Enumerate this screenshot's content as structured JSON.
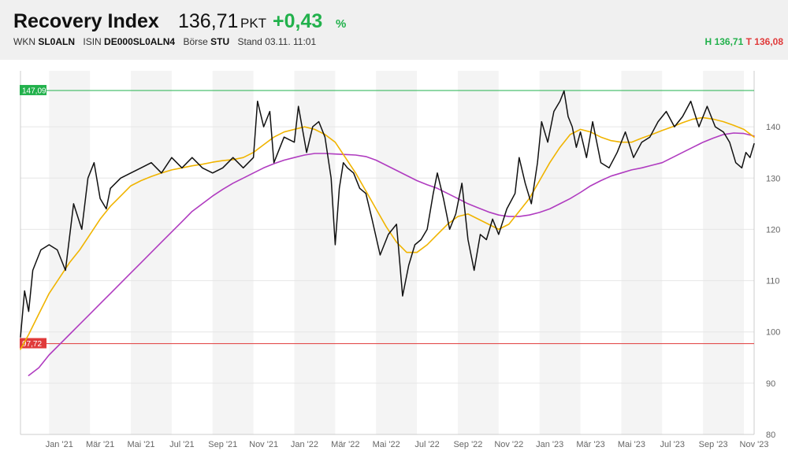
{
  "header": {
    "title": "Recovery Index",
    "price": "136,71",
    "unit": "PKT",
    "change": "+0,43",
    "change_pct_symbol": "%",
    "wkn_label": "WKN",
    "wkn": "SL0ALN",
    "isin_label": "ISIN",
    "isin": "DE000SL0ALN4",
    "exchange_label": "Börse",
    "exchange": "STU",
    "stand_label": "Stand",
    "stand": "03.11. 11:01",
    "high_label": "H",
    "high": "136,71",
    "low_label": "T",
    "low": "136,08"
  },
  "colors": {
    "positive": "#22b14c",
    "negative": "#e03a3a",
    "price_line": "#111111",
    "sma_short": "#f0b400",
    "sma_long": "#b03cc0",
    "band": "#f4f4f4"
  },
  "chart_data": {
    "type": "line",
    "ylim": [
      80,
      150
    ],
    "y_ticks": [
      80,
      90,
      100,
      110,
      120,
      130,
      140
    ],
    "x_ticks": [
      "Jan '21",
      "Mär '21",
      "Mai '21",
      "Jul '21",
      "Sep '21",
      "Nov '21",
      "Jan '22",
      "Mär '22",
      "Mai '22",
      "Jul '22",
      "Sep '22",
      "Nov '22",
      "Jan '23",
      "Mär '23",
      "Mai '23",
      "Jul '23",
      "Sep '23",
      "Nov '23"
    ],
    "x_ticks_t": [
      0.5,
      2.5,
      4.5,
      6.5,
      8.5,
      10.5,
      12.5,
      14.5,
      16.5,
      18.5,
      20.5,
      22.5,
      24.5,
      26.5,
      28.5,
      30.5,
      32.5,
      34.5
    ],
    "x_range_t": [
      -1.4,
      34.5
    ],
    "bands_t": [
      [
        0,
        2
      ],
      [
        4,
        6
      ],
      [
        8,
        10
      ],
      [
        12,
        14
      ],
      [
        16,
        18
      ],
      [
        20,
        22
      ],
      [
        24,
        26
      ],
      [
        28,
        30
      ],
      [
        32,
        34
      ]
    ],
    "reference_lines": [
      {
        "label": "147,09",
        "value": 147.09,
        "color": "#22b14c"
      },
      {
        "label": "97,72",
        "value": 97.72,
        "color": "#e03a3a"
      }
    ],
    "series": [
      {
        "key": "price",
        "t": [
          -1.4,
          -1.2,
          -1.0,
          -0.8,
          -0.6,
          -0.4,
          0.0,
          0.4,
          0.8,
          1.2,
          1.6,
          1.9,
          2.2,
          2.5,
          2.8,
          3.0,
          3.5,
          4.0,
          4.5,
          5.0,
          5.5,
          6.0,
          6.5,
          7.0,
          7.5,
          8.0,
          8.5,
          9.0,
          9.5,
          10.0,
          10.2,
          10.5,
          10.8,
          11.0,
          11.5,
          12.0,
          12.2,
          12.6,
          12.9,
          13.2,
          13.5,
          13.8,
          14.0,
          14.2,
          14.4,
          14.6,
          14.9,
          15.2,
          15.5,
          15.8,
          16.2,
          16.6,
          17.0,
          17.3,
          17.6,
          17.9,
          18.2,
          18.5,
          18.8,
          19.0,
          19.3,
          19.6,
          19.9,
          20.2,
          20.5,
          20.8,
          21.1,
          21.4,
          21.7,
          22.0,
          22.4,
          22.8,
          23.0,
          23.3,
          23.6,
          23.9,
          24.1,
          24.4,
          24.7,
          25.0,
          25.2,
          25.4,
          25.6,
          25.8,
          26.0,
          26.3,
          26.6,
          27.0,
          27.4,
          27.8,
          28.2,
          28.6,
          29.0,
          29.4,
          29.8,
          30.2,
          30.6,
          31.0,
          31.4,
          31.8,
          32.2,
          32.6,
          33.0,
          33.3,
          33.6,
          33.9,
          34.1,
          34.3,
          34.5
        ],
        "values": [
          99,
          108,
          104,
          112,
          114,
          116,
          117,
          116,
          112,
          125,
          120,
          130,
          133,
          126,
          124,
          128,
          130,
          131,
          132,
          133,
          131,
          134,
          132,
          134,
          132,
          131,
          132,
          134,
          132,
          134,
          145,
          140,
          143,
          133,
          138,
          137,
          144,
          135,
          140,
          141,
          138,
          130,
          117,
          128,
          133,
          132,
          131,
          128,
          127,
          122,
          115,
          119,
          121,
          107,
          113,
          117,
          118,
          120,
          127,
          131,
          126,
          120,
          123,
          129,
          118,
          112,
          119,
          118,
          122,
          119,
          124,
          127,
          134,
          129,
          125,
          133,
          141,
          137,
          143,
          145,
          147,
          142,
          140,
          136,
          139,
          134,
          141,
          133,
          132,
          135,
          139,
          134,
          137,
          138,
          141,
          143,
          140,
          142,
          145,
          140,
          144,
          140,
          139,
          137,
          133,
          132,
          135,
          134,
          136.7
        ]
      },
      {
        "key": "sma_short",
        "t": [
          -1.4,
          -1.0,
          -0.5,
          0.0,
          0.5,
          1.0,
          1.5,
          2.0,
          2.5,
          3.0,
          3.5,
          4.0,
          4.5,
          5.0,
          5.5,
          6.0,
          6.5,
          7.0,
          7.5,
          8.0,
          8.5,
          9.0,
          9.5,
          10.0,
          10.5,
          11.0,
          11.5,
          12.0,
          12.5,
          13.0,
          13.5,
          14.0,
          14.5,
          15.0,
          15.5,
          16.0,
          16.5,
          17.0,
          17.5,
          18.0,
          18.5,
          19.0,
          19.5,
          20.0,
          20.5,
          21.0,
          21.5,
          22.0,
          22.5,
          23.0,
          23.5,
          24.0,
          24.5,
          25.0,
          25.5,
          26.0,
          26.5,
          27.0,
          27.5,
          28.0,
          28.5,
          29.0,
          29.5,
          30.0,
          30.5,
          31.0,
          31.5,
          32.0,
          32.5,
          33.0,
          33.5,
          34.0,
          34.5
        ],
        "values": [
          96.6,
          99.5,
          103.5,
          107.5,
          110.5,
          113.5,
          116.0,
          119.0,
          122.0,
          124.5,
          126.5,
          128.5,
          129.5,
          130.3,
          131.0,
          131.6,
          132.0,
          132.4,
          132.7,
          133.1,
          133.4,
          133.6,
          134.0,
          135.0,
          136.5,
          138.0,
          139.0,
          139.5,
          140.0,
          139.5,
          138.5,
          137.0,
          134.0,
          131.0,
          127.5,
          124.0,
          120.5,
          117.5,
          115.5,
          115.5,
          117.0,
          119.0,
          121.0,
          122.5,
          123.0,
          122.0,
          121.0,
          120.0,
          121.0,
          123.5,
          126.0,
          129.5,
          133.0,
          136.0,
          138.5,
          139.5,
          139.0,
          138.0,
          137.3,
          137.0,
          137.0,
          137.8,
          138.5,
          139.3,
          140.0,
          140.8,
          141.5,
          141.8,
          141.5,
          141.0,
          140.3,
          139.5,
          138.0
        ]
      },
      {
        "key": "sma_long",
        "t": [
          -1.0,
          -0.5,
          0.0,
          0.5,
          1.0,
          1.5,
          2.0,
          2.5,
          3.0,
          3.5,
          4.0,
          4.5,
          5.0,
          5.5,
          6.0,
          6.5,
          7.0,
          7.5,
          8.0,
          8.5,
          9.0,
          9.5,
          10.0,
          10.5,
          11.0,
          11.5,
          12.0,
          12.5,
          13.0,
          13.5,
          14.0,
          14.5,
          15.0,
          15.5,
          16.0,
          16.5,
          17.0,
          17.5,
          18.0,
          18.5,
          19.0,
          19.5,
          20.0,
          20.5,
          21.0,
          21.5,
          22.0,
          22.5,
          23.0,
          23.5,
          24.0,
          24.5,
          25.0,
          25.5,
          26.0,
          26.5,
          27.0,
          27.5,
          28.0,
          28.5,
          29.0,
          29.5,
          30.0,
          30.5,
          31.0,
          31.5,
          32.0,
          32.5,
          33.0,
          33.5,
          34.0,
          34.5
        ],
        "values": [
          91.5,
          93.0,
          95.5,
          97.5,
          99.5,
          101.5,
          103.5,
          105.5,
          107.5,
          109.5,
          111.5,
          113.5,
          115.5,
          117.5,
          119.5,
          121.5,
          123.5,
          125.0,
          126.5,
          127.8,
          129.0,
          130.0,
          131.0,
          132.0,
          132.8,
          133.5,
          134.0,
          134.5,
          134.8,
          134.8,
          134.7,
          134.6,
          134.5,
          134.2,
          133.5,
          132.5,
          131.5,
          130.5,
          129.5,
          128.7,
          128.0,
          127.0,
          126.0,
          125.0,
          124.2,
          123.4,
          122.8,
          122.5,
          122.5,
          122.8,
          123.3,
          124.0,
          125.0,
          126.0,
          127.2,
          128.5,
          129.5,
          130.4,
          131.0,
          131.6,
          132.0,
          132.5,
          133.0,
          134.0,
          135.0,
          136.0,
          137.0,
          137.8,
          138.5,
          138.8,
          138.7,
          138.2
        ]
      }
    ]
  }
}
